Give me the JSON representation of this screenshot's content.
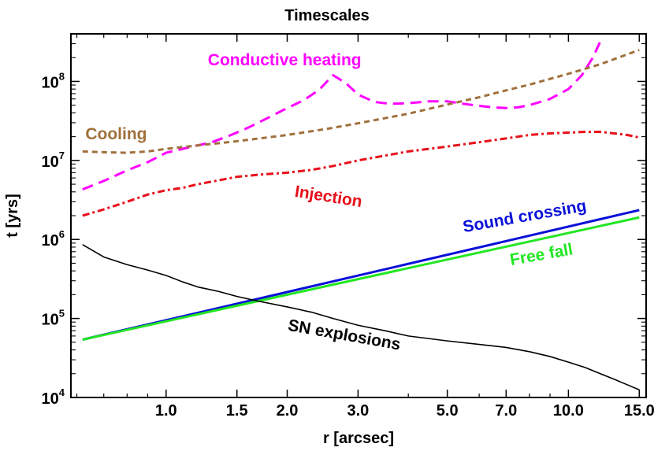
{
  "chart_data": {
    "type": "line",
    "title": "Timescales",
    "xlabel": "r [arcsec]",
    "ylabel": "t [yrs]",
    "x_scale": "log",
    "y_scale": "log",
    "xlim": [
      0.58,
      15.6
    ],
    "ylim": [
      10000,
      400000000
    ],
    "x_ticks": [
      {
        "value": 1.0,
        "label": "1.0"
      },
      {
        "value": 1.5,
        "label": "1.5"
      },
      {
        "value": 2.0,
        "label": "2.0"
      },
      {
        "value": 3.0,
        "label": "3.0"
      },
      {
        "value": 5.0,
        "label": "5.0"
      },
      {
        "value": 7.0,
        "label": "7.0"
      },
      {
        "value": 10.0,
        "label": "10.0"
      },
      {
        "value": 15.0,
        "label": "15.0"
      }
    ],
    "y_ticks": [
      {
        "value": 10000,
        "base": "10",
        "exp": "4"
      },
      {
        "value": 100000,
        "base": "10",
        "exp": "5"
      },
      {
        "value": 1000000,
        "base": "10",
        "exp": "6"
      },
      {
        "value": 10000000,
        "base": "10",
        "exp": "7"
      },
      {
        "value": 100000000,
        "base": "10",
        "exp": "8"
      }
    ],
    "grid": false,
    "series": [
      {
        "name": "Conductive heating",
        "color": "#ff00ff",
        "dash": "dashed",
        "x": [
          0.62,
          0.7,
          0.8,
          0.9,
          1.0,
          1.15,
          1.3,
          1.45,
          1.6,
          1.8,
          2.0,
          2.2,
          2.4,
          2.6,
          2.8,
          3.0,
          3.3,
          3.6,
          4.0,
          4.5,
          5.0,
          5.5,
          6.0,
          6.5,
          7.0,
          7.5,
          8.0,
          9.0,
          10.0,
          10.8,
          11.5,
          12.0
        ],
        "y": [
          4300000,
          5500000,
          7500000,
          9500000,
          12500000,
          14800000,
          17000000,
          21000000,
          26000000,
          35000000,
          46000000,
          58000000,
          78000000,
          120000000,
          95000000,
          68000000,
          55000000,
          52000000,
          53000000,
          56000000,
          56000000,
          52000000,
          49000000,
          47000000,
          46000000,
          47000000,
          50000000,
          60000000,
          80000000,
          120000000,
          200000000,
          320000000
        ]
      },
      {
        "name": "Cooling",
        "color": "#a0703c",
        "dash": "short-dash",
        "x": [
          0.62,
          0.7,
          0.8,
          0.9,
          1.0,
          1.2,
          1.5,
          2.0,
          2.5,
          3.0,
          4.0,
          5.0,
          6.0,
          7.0,
          8.0,
          10.0,
          12.0,
          15.0
        ],
        "y": [
          13000000,
          12700000,
          12500000,
          13000000,
          14000000,
          15500000,
          17500000,
          21000000,
          25000000,
          29500000,
          39000000,
          51000000,
          63000000,
          77000000,
          91000000,
          125000000,
          165000000,
          250000000
        ]
      },
      {
        "name": "Injection",
        "color": "#e8101a",
        "dash": "dash-dot",
        "x": [
          0.62,
          0.7,
          0.8,
          0.9,
          1.0,
          1.1,
          1.2,
          1.35,
          1.5,
          1.7,
          2.0,
          2.3,
          2.6,
          3.0,
          3.5,
          4.0,
          5.0,
          6.0,
          7.0,
          8.0,
          9.0,
          10.0,
          11.0,
          12.0,
          13.0,
          14.0,
          15.0
        ],
        "y": [
          2000000,
          2400000,
          3000000,
          3700000,
          4200000,
          4500000,
          5000000,
          5600000,
          6200000,
          6600000,
          7000000,
          7600000,
          8500000,
          10000000,
          11500000,
          13000000,
          15000000,
          17000000,
          19000000,
          21000000,
          22000000,
          22500000,
          23000000,
          23000000,
          22000000,
          21000000,
          19500000
        ]
      },
      {
        "name": "Sound crossing",
        "color": "#0a10d8",
        "dash": "solid",
        "x": [
          0.62,
          15.0
        ],
        "y": [
          54000,
          2350000
        ]
      },
      {
        "name": "Free fall",
        "color": "#22e622",
        "dash": "solid",
        "x": [
          0.62,
          15.0
        ],
        "y": [
          54000,
          1900000
        ]
      },
      {
        "name": "SN explosions",
        "color": "#000000",
        "dash": "solid",
        "x": [
          0.62,
          0.7,
          0.8,
          0.9,
          1.0,
          1.1,
          1.2,
          1.35,
          1.5,
          1.7,
          2.0,
          2.3,
          2.6,
          3.0,
          3.5,
          4.0,
          5.0,
          6.0,
          7.0,
          8.0,
          9.0,
          10.0,
          11.0,
          12.0,
          13.0,
          14.0,
          15.0
        ],
        "y": [
          860000,
          600000,
          480000,
          410000,
          350000,
          290000,
          250000,
          220000,
          190000,
          165000,
          140000,
          120000,
          100000,
          82000,
          70000,
          60000,
          52000,
          47000,
          43000,
          38000,
          33000,
          28000,
          24000,
          20000,
          17000,
          14500,
          12500
        ]
      }
    ],
    "annotations": [
      {
        "text": "Conductive heating",
        "series": 0,
        "x": 1.27,
        "y": 160000000,
        "rotate": 0
      },
      {
        "text": "Cooling",
        "series": 1,
        "x": 0.63,
        "y": 18500000,
        "rotate": 0
      },
      {
        "text": "Injection",
        "series": 2,
        "x": 2.08,
        "y": 3500000,
        "rotate": 9
      },
      {
        "text": "Sound crossing",
        "series": 3,
        "x": 5.5,
        "y": 1230000,
        "rotate": -10
      },
      {
        "text": "Free fall",
        "series": 4,
        "x": 7.2,
        "y": 470000,
        "rotate": -10
      },
      {
        "text": "SN explosions",
        "series": 5,
        "x": 2.0,
        "y": 71000,
        "rotate": 10
      }
    ]
  }
}
